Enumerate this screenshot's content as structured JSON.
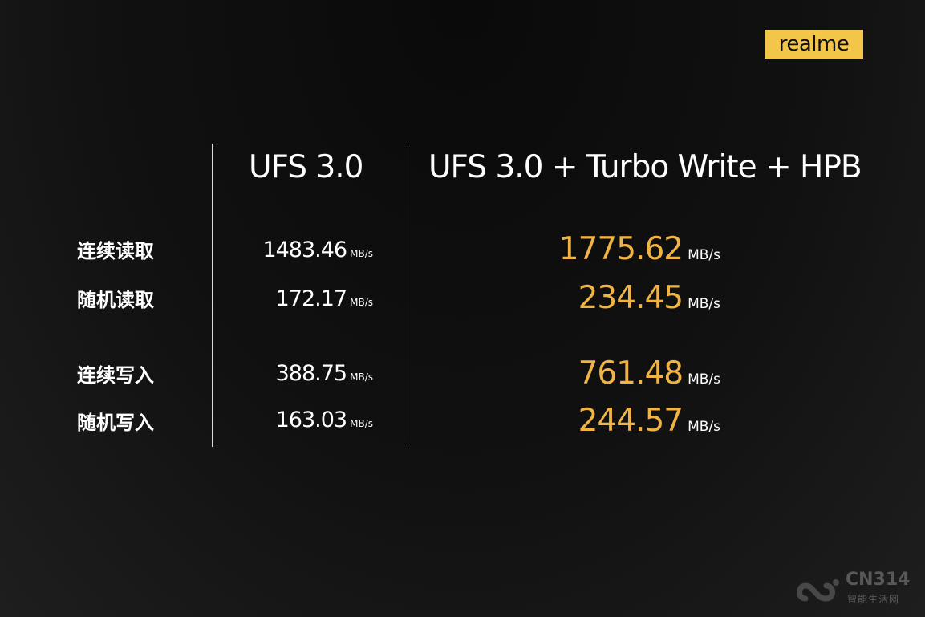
{
  "brand": {
    "logo_text": "realme",
    "logo_color": "#f3c64a"
  },
  "columns": {
    "col1_header": "UFS 3.0",
    "col2_header": "UFS 3.0 + Turbo Write + HPB"
  },
  "rows": [
    {
      "label": "连续读取",
      "ufs30": "1483.46",
      "ufs30_unit": "MB/s",
      "turbo": "1775.62",
      "turbo_unit": "MB/s"
    },
    {
      "label": "随机读取",
      "ufs30": "172.17",
      "ufs30_unit": "MB/s",
      "turbo": "234.45",
      "turbo_unit": "MB/s"
    },
    {
      "label": "连续写入",
      "ufs30": "388.75",
      "ufs30_unit": "MB/s",
      "turbo": "761.48",
      "turbo_unit": "MB/s"
    },
    {
      "label": "随机写入",
      "ufs30": "163.03",
      "ufs30_unit": "MB/s",
      "turbo": "244.57",
      "turbo_unit": "MB/s"
    }
  ],
  "colors": {
    "background": "#111111",
    "highlight_value": "#f0b445",
    "text": "#ffffff"
  },
  "watermark": {
    "brand": "CN314",
    "subtitle": "智能生活网",
    "icon": "cn314-logo-icon"
  }
}
